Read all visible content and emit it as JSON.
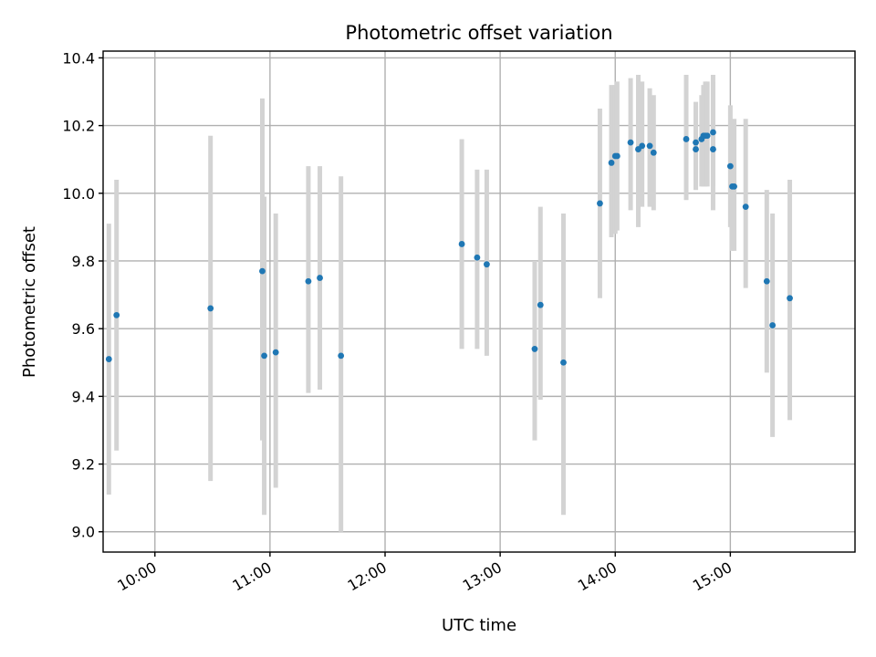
{
  "chart_data": {
    "type": "scatter",
    "title": "Photometric offset variation",
    "xlabel": "UTC time",
    "ylabel": "Photometric offset",
    "xlim": [
      "09:33",
      "16:05"
    ],
    "ylim": [
      8.94,
      10.42
    ],
    "x_ticks": [
      "10:00",
      "11:00",
      "12:00",
      "13:00",
      "14:00",
      "15:00"
    ],
    "y_ticks": [
      9.0,
      9.2,
      9.4,
      9.6,
      9.8,
      10.0,
      10.2,
      10.4
    ],
    "grid": true,
    "colors": {
      "point": "#1f77b4",
      "error_bar": "#d3d3d3"
    },
    "series": [
      {
        "points": [
          {
            "x": "09:36",
            "y": 9.51,
            "err": [
              9.11,
              9.91
            ]
          },
          {
            "x": "09:40",
            "y": 9.64,
            "err": [
              9.24,
              10.04
            ]
          },
          {
            "x": "10:29",
            "y": 9.66,
            "err": [
              9.15,
              10.17
            ]
          },
          {
            "x": "10:56",
            "y": 9.77,
            "err": [
              9.27,
              10.28
            ]
          },
          {
            "x": "10:57",
            "y": 9.52,
            "err": [
              9.05,
              9.99
            ]
          },
          {
            "x": "11:03",
            "y": 9.53,
            "err": [
              9.13,
              9.94
            ]
          },
          {
            "x": "11:20",
            "y": 9.74,
            "err": [
              9.41,
              10.08
            ]
          },
          {
            "x": "11:26",
            "y": 9.75,
            "err": [
              9.42,
              10.08
            ]
          },
          {
            "x": "11:37",
            "y": 9.52,
            "err": [
              9.0,
              10.05
            ]
          },
          {
            "x": "12:40",
            "y": 9.85,
            "err": [
              9.54,
              10.16
            ]
          },
          {
            "x": "12:48",
            "y": 9.81,
            "err": [
              9.54,
              10.07
            ]
          },
          {
            "x": "12:53",
            "y": 9.79,
            "err": [
              9.52,
              10.07
            ]
          },
          {
            "x": "13:18",
            "y": 9.54,
            "err": [
              9.27,
              9.8
            ]
          },
          {
            "x": "13:21",
            "y": 9.67,
            "err": [
              9.39,
              9.96
            ]
          },
          {
            "x": "13:33",
            "y": 9.5,
            "err": [
              9.05,
              9.94
            ]
          },
          {
            "x": "13:52",
            "y": 9.97,
            "err": [
              9.69,
              10.25
            ]
          },
          {
            "x": "13:58",
            "y": 10.09,
            "err": [
              9.87,
              10.32
            ]
          },
          {
            "x": "14:00",
            "y": 10.11,
            "err": [
              9.88,
              10.32
            ]
          },
          {
            "x": "14:01",
            "y": 10.11,
            "err": [
              9.89,
              10.33
            ]
          },
          {
            "x": "14:08",
            "y": 10.15,
            "err": [
              9.95,
              10.34
            ]
          },
          {
            "x": "14:12",
            "y": 10.13,
            "err": [
              9.9,
              10.35
            ]
          },
          {
            "x": "14:14",
            "y": 10.14,
            "err": [
              9.96,
              10.33
            ]
          },
          {
            "x": "14:18",
            "y": 10.14,
            "err": [
              9.96,
              10.31
            ]
          },
          {
            "x": "14:20",
            "y": 10.12,
            "err": [
              9.95,
              10.29
            ]
          },
          {
            "x": "14:37",
            "y": 10.16,
            "err": [
              9.98,
              10.35
            ]
          },
          {
            "x": "14:42",
            "y": 10.15,
            "err": [
              10.01,
              10.27
            ]
          },
          {
            "x": "14:42",
            "y": 10.13,
            "err": [
              10.01,
              10.26
            ]
          },
          {
            "x": "14:45",
            "y": 10.16,
            "err": [
              10.02,
              10.29
            ]
          },
          {
            "x": "14:46",
            "y": 10.17,
            "err": [
              10.02,
              10.32
            ]
          },
          {
            "x": "14:47",
            "y": 10.17,
            "err": [
              10.02,
              10.33
            ]
          },
          {
            "x": "14:48",
            "y": 10.17,
            "err": [
              10.02,
              10.33
            ]
          },
          {
            "x": "14:51",
            "y": 10.18,
            "err": [
              10.02,
              10.35
            ]
          },
          {
            "x": "14:51",
            "y": 10.13,
            "err": [
              9.95,
              10.33
            ]
          },
          {
            "x": "15:00",
            "y": 10.08,
            "err": [
              9.9,
              10.26
            ]
          },
          {
            "x": "15:01",
            "y": 10.02,
            "err": [
              9.83,
              10.2
            ]
          },
          {
            "x": "15:02",
            "y": 10.02,
            "err": [
              9.83,
              10.22
            ]
          },
          {
            "x": "15:08",
            "y": 9.96,
            "err": [
              9.72,
              10.22
            ]
          },
          {
            "x": "15:19",
            "y": 9.74,
            "err": [
              9.47,
              10.01
            ]
          },
          {
            "x": "15:22",
            "y": 9.61,
            "err": [
              9.28,
              9.94
            ]
          },
          {
            "x": "15:31",
            "y": 9.69,
            "err": [
              9.33,
              10.04
            ]
          }
        ]
      }
    ]
  }
}
